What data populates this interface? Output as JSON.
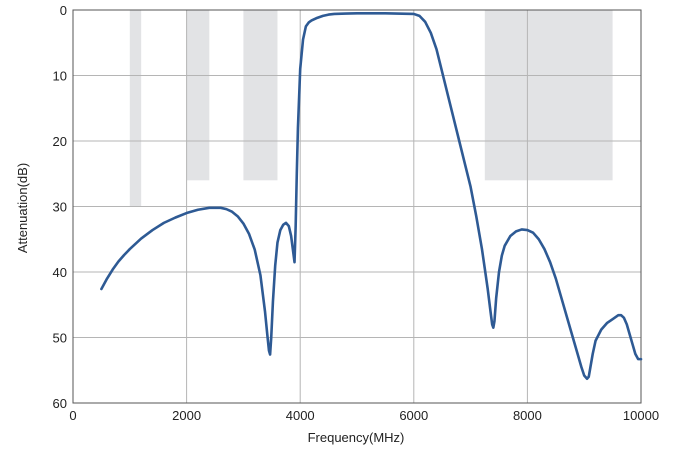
{
  "chart_data": {
    "type": "line",
    "title": "",
    "xlabel": "Frequency(MHz)",
    "ylabel": "Attenuation(dB)",
    "xlim": [
      0,
      10000
    ],
    "ylim": [
      0,
      60
    ],
    "y_inverted": true,
    "grid": true,
    "legend": "none",
    "x_ticks": [
      0,
      2000,
      4000,
      6000,
      8000,
      10000
    ],
    "x_tick_labels": [
      "0",
      "2000",
      "4000",
      "6000",
      "8000",
      "10000"
    ],
    "y_ticks": [
      0,
      10,
      20,
      30,
      40,
      50,
      60
    ],
    "y_tick_labels": [
      "0",
      "10",
      "20",
      "30",
      "40",
      "50",
      "60"
    ],
    "colors": {
      "line": "#2e5a94",
      "mask": "#e2e3e5",
      "grid": "#b5b5b5",
      "frame": "#555555"
    },
    "mask_regions": [
      {
        "x_start": 1000,
        "x_end": 1200,
        "attenuation_db": 30
      },
      {
        "x_start": 2000,
        "x_end": 2400,
        "attenuation_db": 26
      },
      {
        "x_start": 3000,
        "x_end": 3600,
        "attenuation_db": 26
      },
      {
        "x_start": 7250,
        "x_end": 9500,
        "attenuation_db": 26
      }
    ],
    "series": [
      {
        "x": [
          500,
          600,
          700,
          800,
          900,
          1000,
          1200,
          1400,
          1600,
          1800,
          2000,
          2200,
          2400,
          2600,
          2700,
          2800,
          2900,
          3000,
          3100,
          3200,
          3300,
          3380,
          3420,
          3450,
          3470,
          3490,
          3520,
          3560,
          3600,
          3650,
          3700,
          3750,
          3800,
          3840,
          3870,
          3900,
          3920,
          3940,
          3960,
          4000,
          4050,
          4100,
          4150,
          4200,
          4300,
          4400,
          4500,
          4600,
          4800,
          5000,
          5500,
          6000,
          6100,
          6200,
          6300,
          6400,
          6500,
          6600,
          6700,
          6800,
          6900,
          7000,
          7100,
          7200,
          7250,
          7300,
          7350,
          7380,
          7400,
          7420,
          7450,
          7500,
          7550,
          7600,
          7700,
          7800,
          7900,
          8000,
          8100,
          8200,
          8300,
          8400,
          8500,
          8600,
          8700,
          8800,
          8900,
          8950,
          9000,
          9050,
          9080,
          9100,
          9150,
          9200,
          9300,
          9400,
          9500,
          9600,
          9650,
          9700,
          9750,
          9800,
          9850,
          9900,
          9950,
          10000
        ],
        "y": [
          42.6,
          41.0,
          39.6,
          38.4,
          37.4,
          36.5,
          34.9,
          33.6,
          32.5,
          31.7,
          31.0,
          30.5,
          30.2,
          30.2,
          30.4,
          30.8,
          31.5,
          32.6,
          34.2,
          36.6,
          40.5,
          46.0,
          49.5,
          52.0,
          52.6,
          50.0,
          44.5,
          39.0,
          35.5,
          33.6,
          32.8,
          32.5,
          33.0,
          34.5,
          36.5,
          38.5,
          33.0,
          25.0,
          18.0,
          9.0,
          4.5,
          2.5,
          1.9,
          1.6,
          1.2,
          0.9,
          0.7,
          0.6,
          0.55,
          0.5,
          0.5,
          0.6,
          0.9,
          1.8,
          3.5,
          6.0,
          9.5,
          13.0,
          16.5,
          20.0,
          23.5,
          27.0,
          31.5,
          36.5,
          39.5,
          42.5,
          46.0,
          48.0,
          48.5,
          47.5,
          44.0,
          40.0,
          37.5,
          36.0,
          34.5,
          33.8,
          33.5,
          33.6,
          34.0,
          35.0,
          36.5,
          38.5,
          41.0,
          44.0,
          47.0,
          50.0,
          53.0,
          54.5,
          55.8,
          56.3,
          56.0,
          55.0,
          52.5,
          50.5,
          48.8,
          47.8,
          47.2,
          46.6,
          46.6,
          47.0,
          48.0,
          49.5,
          51.0,
          52.5,
          53.3,
          53.3
        ]
      }
    ]
  }
}
